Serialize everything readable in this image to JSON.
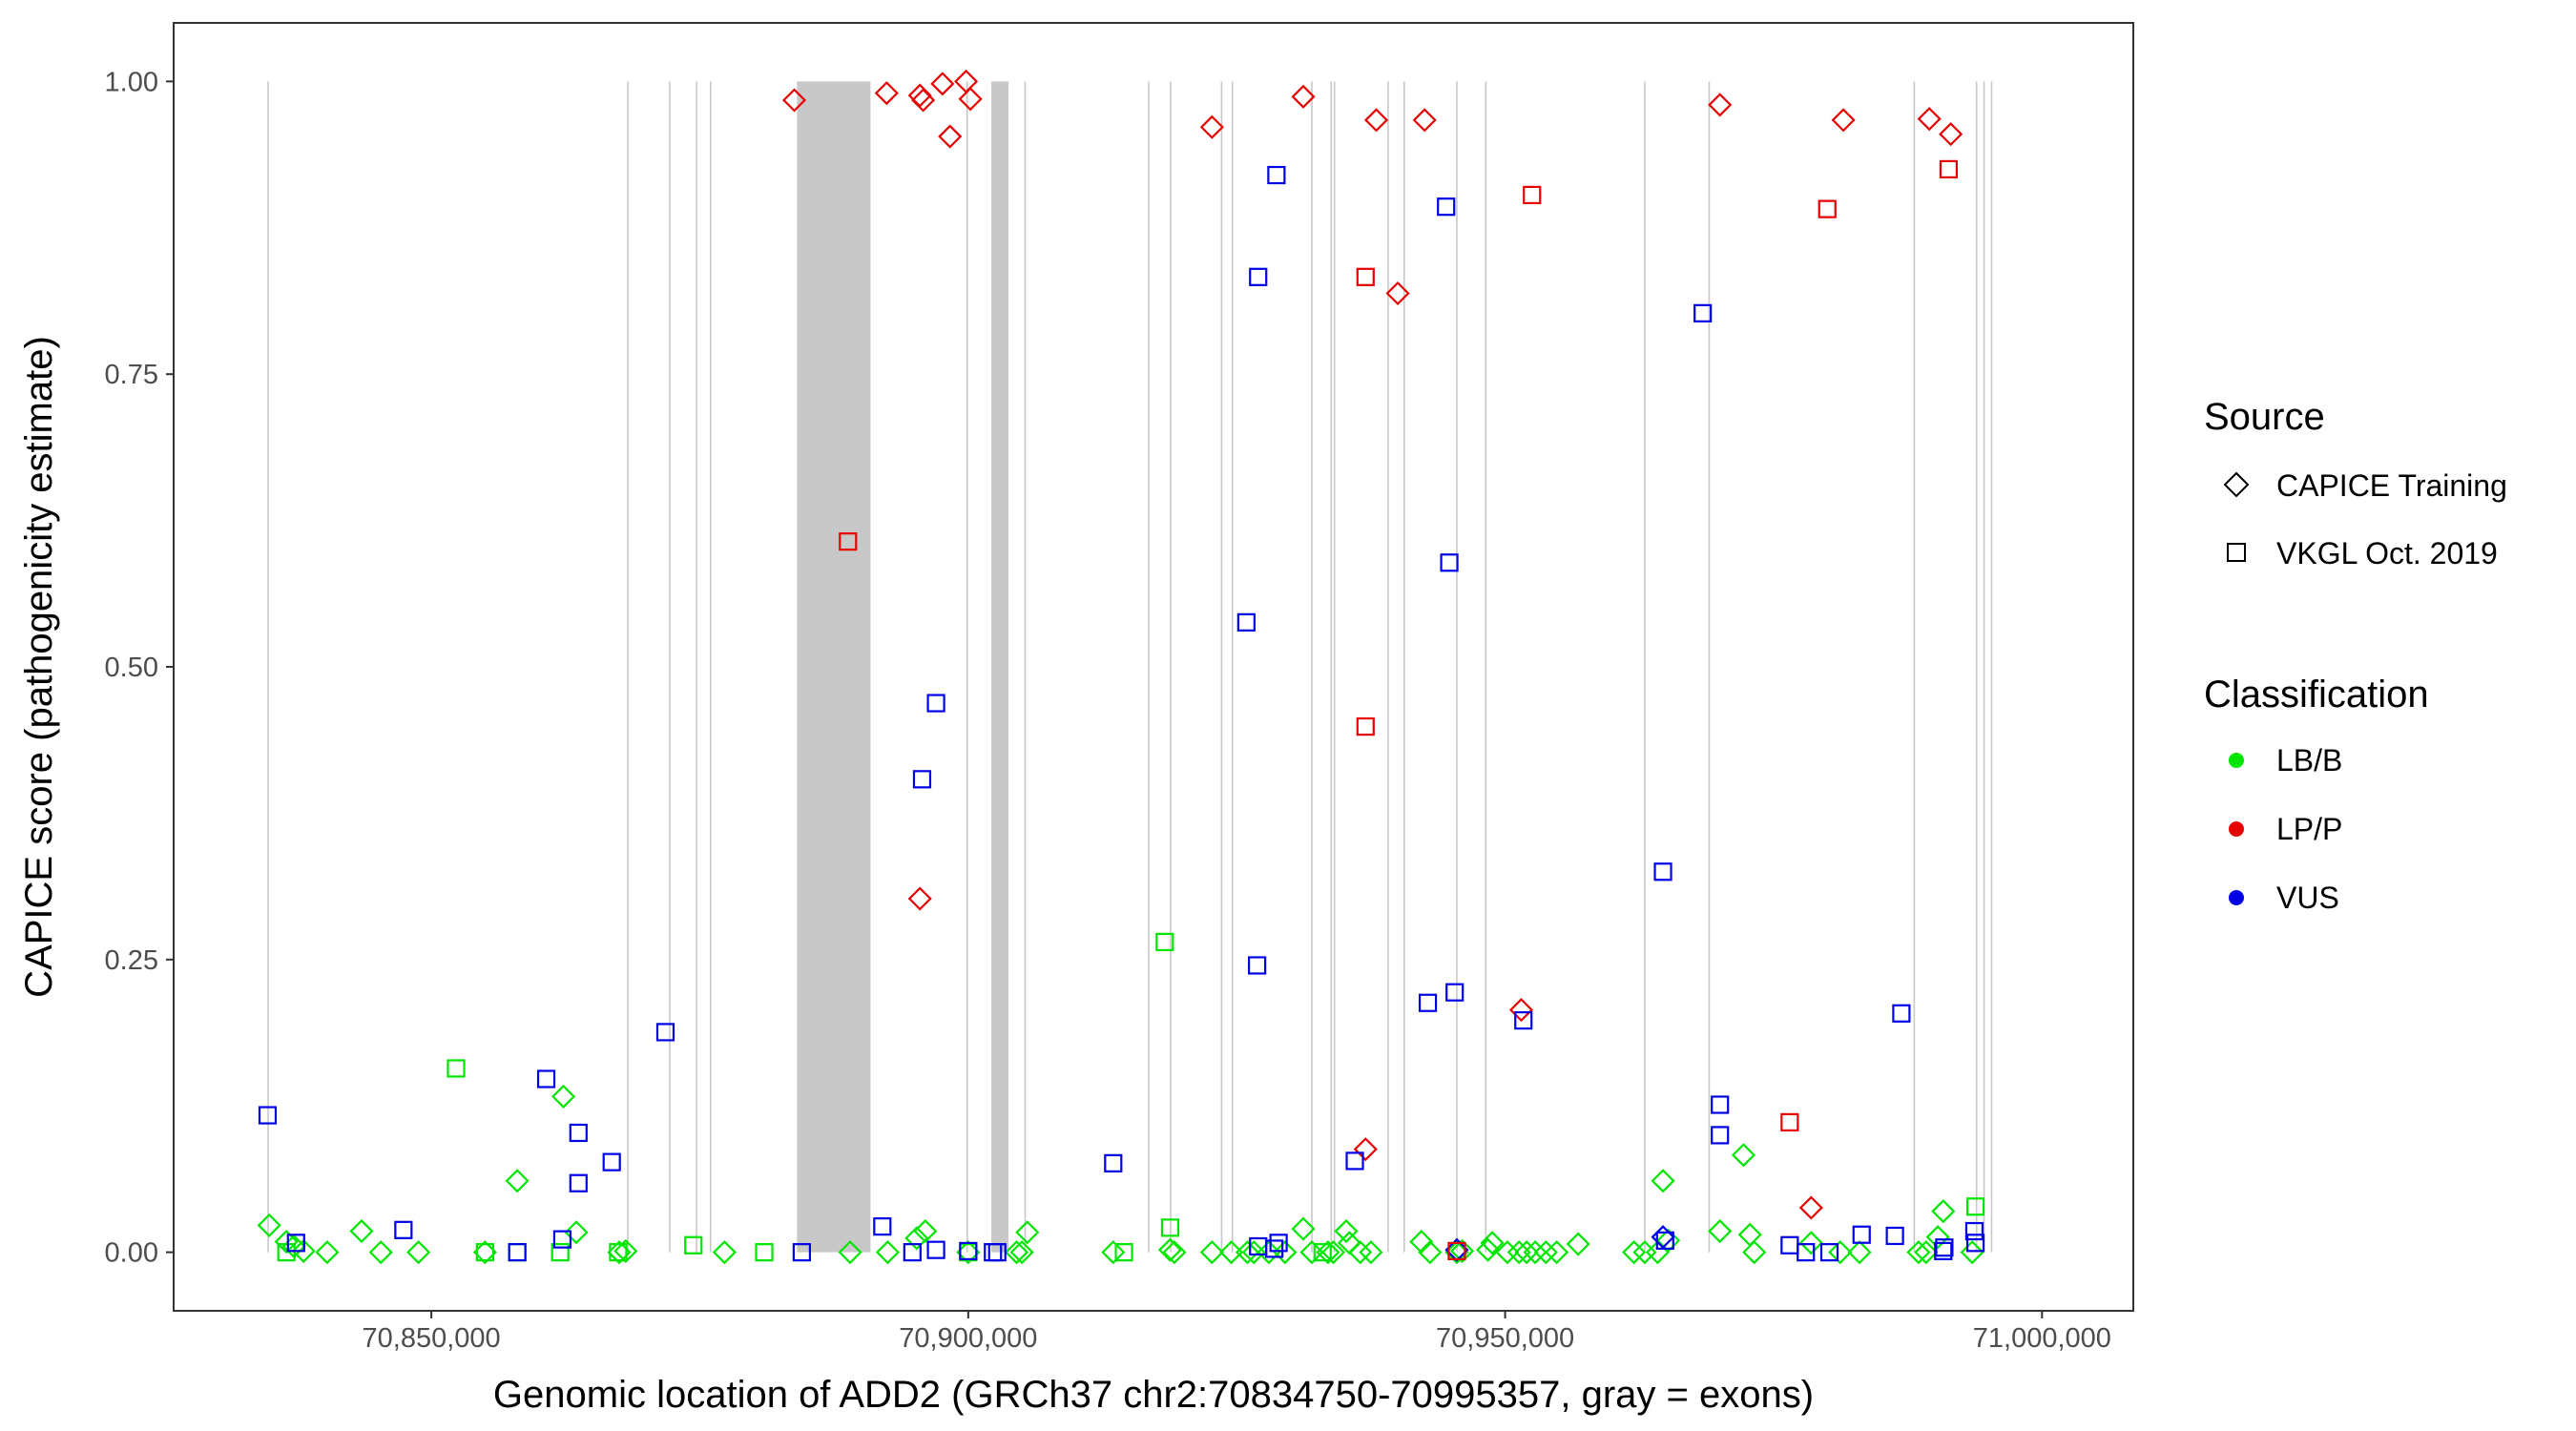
{
  "chart_data": {
    "type": "scatter",
    "xlabel": "Genomic location of ADD2 (GRCh37 chr2:70834750-70995357, gray = exons)",
    "ylabel": "CAPICE score (pathogenicity estimate)",
    "xlim": [
      70826000,
      71008500
    ],
    "ylim": [
      -0.05,
      1.05
    ],
    "x_ticks": [
      70850000,
      70900000,
      70950000,
      71000000
    ],
    "x_tick_labels": [
      "70,850,000",
      "70,900,000",
      "70,950,000",
      "71,000,000"
    ],
    "y_ticks": [
      0,
      0.25,
      0.5,
      0.75,
      1
    ],
    "y_tick_labels": [
      "0.00",
      "0.25",
      "0.50",
      "0.75",
      "1.00"
    ],
    "grid": false,
    "legend_position": "right",
    "exons": [
      [
        70834750,
        70834850
      ],
      [
        70868250,
        70868350
      ],
      [
        70872100,
        70872300
      ],
      [
        70874650,
        70874750
      ],
      [
        70875950,
        70876050
      ],
      [
        70884050,
        70890900
      ],
      [
        70899850,
        70899950
      ],
      [
        70902150,
        70903750
      ],
      [
        70905250,
        70905350
      ],
      [
        70916750,
        70916850
      ],
      [
        70918800,
        70918900
      ],
      [
        70923550,
        70923650
      ],
      [
        70924550,
        70924650
      ],
      [
        70931950,
        70932050
      ],
      [
        70933750,
        70933850
      ],
      [
        70934050,
        70934150
      ],
      [
        70939050,
        70939150
      ],
      [
        70940550,
        70940650
      ],
      [
        70945450,
        70945550
      ],
      [
        70948150,
        70948250
      ],
      [
        70962950,
        70963050
      ],
      [
        70968950,
        70969050
      ],
      [
        70988050,
        70988150
      ],
      [
        70993850,
        70993950
      ],
      [
        70994550,
        70994650
      ],
      [
        70995250,
        70995357
      ]
    ],
    "legend": {
      "source_title": "Source",
      "source_items": [
        {
          "shape": "diamond",
          "label": "CAPICE Training"
        },
        {
          "shape": "square",
          "label": "VKGL Oct. 2019"
        }
      ],
      "class_title": "Classification",
      "class_items": [
        {
          "label": "LB/B",
          "color": "#00e600"
        },
        {
          "label": "LP/P",
          "color": "#e60000"
        },
        {
          "label": "VUS",
          "color": "#0000e6"
        }
      ]
    },
    "series": [
      {
        "name": "CAPICE Training - LB/B",
        "shape": "diamond",
        "color": "#00e600",
        "points": [
          [
            70834900,
            0.023
          ],
          [
            70836500,
            0.009
          ],
          [
            70837200,
            0.005
          ],
          [
            70838100,
            0.001
          ],
          [
            70840300,
            0.0
          ],
          [
            70843500,
            0.018
          ],
          [
            70845300,
            0.0
          ],
          [
            70848800,
            0.0
          ],
          [
            70855000,
            0.0
          ],
          [
            70858000,
            0.061
          ],
          [
            70862300,
            0.133
          ],
          [
            70863500,
            0.017
          ],
          [
            70867500,
            0.0
          ],
          [
            70868100,
            0.001
          ],
          [
            70877300,
            0.0
          ],
          [
            70889000,
            0.0
          ],
          [
            70892500,
            0.0
          ],
          [
            70895200,
            0.012
          ],
          [
            70896000,
            0.018
          ],
          [
            70900000,
            0.0
          ],
          [
            70904500,
            0.0
          ],
          [
            70905000,
            0.0
          ],
          [
            70905500,
            0.017
          ],
          [
            70913500,
            0.0
          ],
          [
            70918800,
            0.002
          ],
          [
            70919200,
            0.0
          ],
          [
            70922700,
            0.0
          ],
          [
            70924500,
            0.0
          ],
          [
            70926000,
            0.0
          ],
          [
            70926600,
            0.0
          ],
          [
            70928000,
            0.0
          ],
          [
            70929500,
            0.0
          ],
          [
            70931200,
            0.02
          ],
          [
            70932000,
            0.0
          ],
          [
            70933500,
            0.0
          ],
          [
            70934000,
            0.0
          ],
          [
            70935200,
            0.018
          ],
          [
            70935500,
            0.008
          ],
          [
            70936500,
            0.0
          ],
          [
            70937500,
            0.0
          ],
          [
            70942200,
            0.009
          ],
          [
            70943000,
            0.0
          ],
          [
            70945500,
            0.0
          ],
          [
            70946000,
            0.001
          ],
          [
            70948400,
            0.002
          ],
          [
            70948800,
            0.008
          ],
          [
            70950200,
            0.0
          ],
          [
            70951300,
            0.0
          ],
          [
            70952000,
            0.0
          ],
          [
            70952800,
            0.0
          ],
          [
            70953800,
            0.0
          ],
          [
            70954800,
            0.0
          ],
          [
            70956800,
            0.007
          ],
          [
            70962000,
            0.0
          ],
          [
            70963000,
            0.0
          ],
          [
            70964200,
            0.0
          ],
          [
            70964700,
            0.061
          ],
          [
            70965200,
            0.01
          ],
          [
            70970000,
            0.018
          ],
          [
            70972200,
            0.083
          ],
          [
            70972800,
            0.015
          ],
          [
            70973200,
            0.0
          ],
          [
            70978500,
            0.008
          ],
          [
            70981200,
            0.0
          ],
          [
            70983000,
            0.0
          ],
          [
            70988500,
            0.0
          ],
          [
            70989200,
            0.0
          ],
          [
            70990300,
            0.013
          ],
          [
            70990800,
            0.035
          ],
          [
            70993500,
            0.0
          ]
        ]
      },
      {
        "name": "CAPICE Training - LP/P",
        "shape": "diamond",
        "color": "#e60000",
        "points": [
          [
            70883800,
            0.984
          ],
          [
            70892400,
            0.99
          ],
          [
            70895500,
            0.988
          ],
          [
            70895800,
            0.984
          ],
          [
            70897600,
            0.998
          ],
          [
            70898300,
            0.953
          ],
          [
            70899800,
            1.0
          ],
          [
            70900200,
            0.985
          ],
          [
            70895500,
            0.302
          ],
          [
            70922700,
            0.961
          ],
          [
            70931200,
            0.987
          ],
          [
            70938000,
            0.967
          ],
          [
            70940000,
            0.819
          ],
          [
            70942500,
            0.967
          ],
          [
            70951500,
            0.207
          ],
          [
            70937000,
            0.088
          ],
          [
            70970000,
            0.98
          ],
          [
            70978500,
            0.038
          ],
          [
            70981500,
            0.967
          ],
          [
            70989500,
            0.968
          ],
          [
            70991500,
            0.955
          ]
        ]
      },
      {
        "name": "CAPICE Training - VUS",
        "shape": "diamond",
        "color": "#0000e6",
        "points": [
          [
            70945500,
            0.002
          ],
          [
            70964700,
            0.013
          ]
        ]
      },
      {
        "name": "VKGL Oct. 2019 - LB/B",
        "shape": "square",
        "color": "#00e600",
        "points": [
          [
            70836500,
            0.0
          ],
          [
            70852300,
            0.157
          ],
          [
            70855000,
            0.0
          ],
          [
            70858000,
            0.0
          ],
          [
            70862000,
            0.0
          ],
          [
            70867400,
            0.0
          ],
          [
            70874400,
            0.006
          ],
          [
            70881000,
            0.0
          ],
          [
            70900000,
            0.0
          ],
          [
            70914500,
            0.0
          ],
          [
            70918300,
            0.265
          ],
          [
            70918800,
            0.021
          ],
          [
            70933000,
            0.0
          ],
          [
            70993800,
            0.039
          ]
        ]
      },
      {
        "name": "VKGL Oct. 2019 - LP/P",
        "shape": "square",
        "color": "#e60000",
        "points": [
          [
            70888800,
            0.607
          ],
          [
            70937000,
            0.833
          ],
          [
            70937000,
            0.449
          ],
          [
            70952500,
            0.903
          ],
          [
            70976500,
            0.111
          ],
          [
            70980000,
            0.891
          ],
          [
            70991300,
            0.925
          ],
          [
            70945500,
            0.001
          ]
        ]
      },
      {
        "name": "VKGL Oct. 2019 - VUS",
        "shape": "square",
        "color": "#0000e6",
        "points": [
          [
            70834750,
            0.117
          ],
          [
            70837400,
            0.008
          ],
          [
            70847400,
            0.019
          ],
          [
            70858000,
            0.0
          ],
          [
            70860700,
            0.148
          ],
          [
            70862200,
            0.011
          ],
          [
            70863700,
            0.102
          ],
          [
            70863700,
            0.059
          ],
          [
            70866800,
            0.077
          ],
          [
            70871800,
            0.188
          ],
          [
            70884500,
            0.0
          ],
          [
            70892000,
            0.022
          ],
          [
            70894800,
            0.0
          ],
          [
            70895700,
            0.404
          ],
          [
            70897000,
            0.469
          ],
          [
            70897000,
            0.002
          ],
          [
            70900000,
            0.001
          ],
          [
            70902300,
            0.0
          ],
          [
            70902700,
            0.0
          ],
          [
            70913500,
            0.076
          ],
          [
            70925900,
            0.538
          ],
          [
            70926900,
            0.245
          ],
          [
            70927000,
            0.833
          ],
          [
            70927000,
            0.005
          ],
          [
            70928500,
            0.003
          ],
          [
            70928700,
            0.92
          ],
          [
            70928900,
            0.008
          ],
          [
            70936000,
            0.078
          ],
          [
            70942800,
            0.213
          ],
          [
            70944500,
            0.893
          ],
          [
            70944800,
            0.589
          ],
          [
            70945300,
            0.222
          ],
          [
            70951700,
            0.198
          ],
          [
            70964700,
            0.325
          ],
          [
            70964900,
            0.01
          ],
          [
            70968400,
            0.802
          ],
          [
            70970000,
            0.126
          ],
          [
            70970000,
            0.1
          ],
          [
            70976500,
            0.006
          ],
          [
            70978000,
            0.0
          ],
          [
            70980200,
            0.0
          ],
          [
            70983200,
            0.015
          ],
          [
            70986300,
            0.014
          ],
          [
            70986900,
            0.204
          ],
          [
            70990800,
            0.001
          ],
          [
            70990900,
            0.004
          ],
          [
            70993700,
            0.018
          ],
          [
            70993800,
            0.008
          ]
        ]
      }
    ]
  }
}
